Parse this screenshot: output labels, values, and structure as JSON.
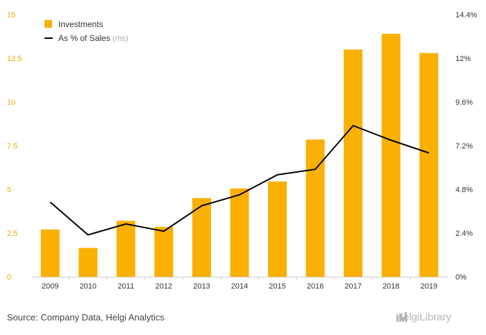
{
  "chart_data": {
    "type": "bar",
    "categories": [
      "2009",
      "2010",
      "2011",
      "2012",
      "2013",
      "2014",
      "2015",
      "2016",
      "2017",
      "2018",
      "2019"
    ],
    "series": [
      {
        "name": "Investments",
        "type": "bar",
        "axis": "left",
        "values": [
          2.7,
          1.65,
          3.2,
          2.85,
          4.5,
          5.05,
          5.45,
          7.85,
          13.0,
          13.9,
          12.8
        ]
      },
      {
        "name": "As % of Sales",
        "name_suffix": "(rhs)",
        "type": "line",
        "axis": "right",
        "values": [
          4.1,
          2.3,
          2.9,
          2.5,
          3.9,
          4.5,
          5.6,
          5.9,
          8.3,
          7.5,
          6.8
        ]
      }
    ],
    "y_left": {
      "ylim": [
        0,
        15
      ],
      "ticks": [
        "0",
        "2.5",
        "5",
        "7.5",
        "10",
        "12.5",
        "15"
      ]
    },
    "y_right": {
      "ylim": [
        0,
        14.4
      ],
      "ticks": [
        "0%",
        "2.4%",
        "4.8%",
        "7.2%",
        "9.6%",
        "12%",
        "14.4%"
      ]
    },
    "grid": false,
    "legend_placement": "top-left",
    "colors": {
      "bar": "#f9b000",
      "line": "#000000",
      "left_tick": "#f0a800"
    }
  },
  "footer": {
    "source": "Source: Company Data, Helgi Analytics",
    "brand": "HelgiLibrary",
    "brand_icon": "helgi-library-logo-icon"
  }
}
